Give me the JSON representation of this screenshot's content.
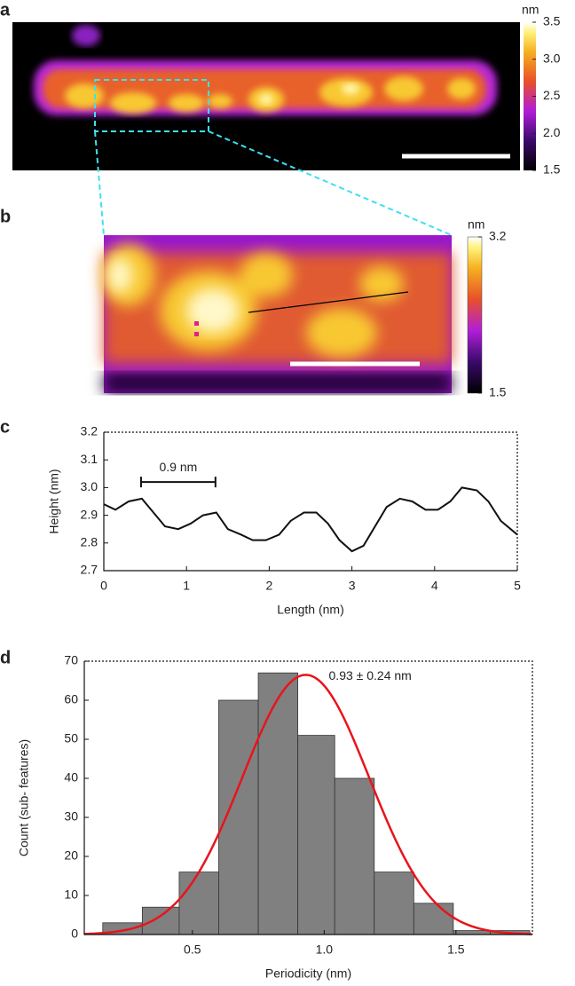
{
  "panel_labels": [
    "a",
    "b",
    "c",
    "d"
  ],
  "images": [
    {
      "colorbar_label": "nm",
      "clim": [
        1.5,
        3.5
      ],
      "ticks": [
        1.5,
        {
          "value": 2,
          "label": "2.0"
        },
        2.5,
        {
          "value": 3,
          "label": "3.0"
        },
        3.5
      ]
    },
    {
      "colorbar_label": "nm",
      "clim": [
        1.5,
        3.2
      ],
      "ticks": [
        1.5,
        3.2
      ]
    }
  ],
  "chart_data": [
    {
      "type": "line",
      "xlabel": "Length (nm)",
      "ylabel": "Height (nm)",
      "x": [
        0,
        0.14,
        0.3,
        0.46,
        0.74,
        0.9,
        1.05,
        1.2,
        1.36,
        1.5,
        1.66,
        1.8,
        1.96,
        2.12,
        2.26,
        2.42,
        2.57,
        2.71,
        2.85,
        3.0,
        3.14,
        3.42,
        3.58,
        3.73,
        3.89,
        4.04,
        4.19,
        4.33,
        4.51,
        4.65,
        4.8,
        5.0
      ],
      "values": [
        2.94,
        2.92,
        2.95,
        2.96,
        2.86,
        2.85,
        2.87,
        2.9,
        2.91,
        2.85,
        2.83,
        2.81,
        2.81,
        2.83,
        2.88,
        2.91,
        2.91,
        2.87,
        2.81,
        2.77,
        2.79,
        2.93,
        2.96,
        2.95,
        2.92,
        2.92,
        2.95,
        3.0,
        2.99,
        2.95,
        2.88,
        2.83
      ],
      "color": "#111111",
      "xlim": [
        0,
        5
      ],
      "ylim": [
        2.7,
        3.2
      ],
      "xticks": [
        0,
        1,
        2,
        3,
        4,
        5
      ],
      "yticks": [
        2.7,
        2.8,
        2.9,
        {
          "value": 3,
          "label": "3.0"
        },
        3.1,
        3.2
      ],
      "annotation": {
        "text": "0.9 nm",
        "x": [
          0.45,
          1.35
        ],
        "y": 3.02
      }
    },
    {
      "type": "histogram",
      "xlabel": "Periodicity (nm)",
      "ylabel": "Count (sub- features)",
      "bins": [
        0.16,
        0.31,
        0.45,
        0.6,
        0.75,
        0.9,
        1.04,
        1.19,
        1.34,
        1.49,
        1.63,
        1.78
      ],
      "values": [
        3,
        7,
        16,
        60,
        67,
        51,
        40,
        16,
        8,
        1,
        1
      ],
      "color": "#808080",
      "xlim": [
        0.09,
        1.79
      ],
      "ylim": [
        0,
        70
      ],
      "xticks": [
        0.5,
        {
          "value": 1,
          "label": "1.0"
        },
        1.5
      ],
      "yticks": [
        0,
        10,
        20,
        30,
        40,
        50,
        60,
        70
      ],
      "fit": {
        "mean": 0.93,
        "sd": 0.24,
        "peak": 66.5,
        "color": "#e8141c",
        "label": "0.93 ± 0.24 nm"
      }
    }
  ]
}
